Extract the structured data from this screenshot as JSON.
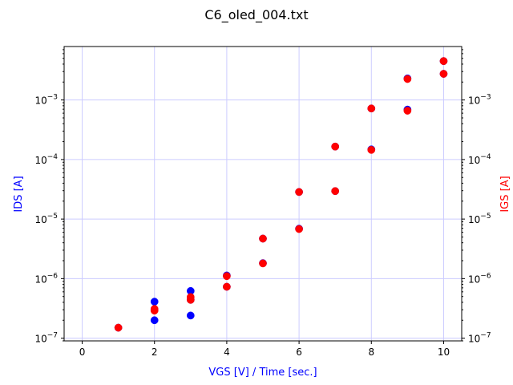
{
  "chart_data": {
    "type": "scatter",
    "title": "C6_oled_004.txt",
    "xlabel": "VGS [V] / Time [sec.]",
    "ylabel_left": "IDS [A]",
    "ylabel_right": "IGS [A]",
    "xlim": [
      -0.5,
      10.5
    ],
    "ylim": [
      9e-08,
      0.0079
    ],
    "yscale": "log",
    "x_ticks": [
      0,
      2,
      4,
      6,
      8,
      10
    ],
    "y_ticks": [
      {
        "value": 1e-07,
        "base": "10",
        "exp": "−7"
      },
      {
        "value": 1e-06,
        "base": "10",
        "exp": "−6"
      },
      {
        "value": 1e-05,
        "base": "10",
        "exp": "−5"
      },
      {
        "value": 0.0001,
        "base": "10",
        "exp": "−4"
      },
      {
        "value": 0.001,
        "base": "10",
        "exp": "−3"
      }
    ],
    "grid": true,
    "colors": {
      "ids": "#0000ff",
      "igs": "#ff0000",
      "grid": "#ccccff"
    },
    "series": [
      {
        "axis": "left",
        "color": "#0000ff",
        "points": [
          [
            1,
            1.5e-07
          ],
          [
            2,
            2e-07
          ],
          [
            2,
            3e-07
          ],
          [
            2,
            4.1e-07
          ],
          [
            3,
            2.4e-07
          ],
          [
            3,
            4.4e-07
          ],
          [
            3,
            6.2e-07
          ],
          [
            4,
            7.3e-07
          ],
          [
            4,
            1.13e-06
          ],
          [
            5,
            1.82e-06
          ],
          [
            5,
            4.7e-06
          ],
          [
            6,
            6.9e-06
          ],
          [
            6,
            2.85e-05
          ],
          [
            7,
            2.95e-05
          ],
          [
            7,
            0.000165
          ],
          [
            8,
            0.000148
          ],
          [
            8,
            0.00072
          ],
          [
            9,
            0.00069
          ],
          [
            9,
            0.0023
          ],
          [
            10,
            0.00275
          ],
          [
            10,
            0.0045
          ]
        ]
      },
      {
        "axis": "right",
        "color": "#ff0000",
        "points": [
          [
            1,
            1.5e-07
          ],
          [
            2,
            2.9e-07
          ],
          [
            2,
            3.1e-07
          ],
          [
            3,
            4.4e-07
          ],
          [
            3,
            4.9e-07
          ],
          [
            4,
            7.3e-07
          ],
          [
            4,
            1.1e-06
          ],
          [
            5,
            1.8e-06
          ],
          [
            5,
            4.7e-06
          ],
          [
            6,
            6.8e-06
          ],
          [
            6,
            2.85e-05
          ],
          [
            7,
            2.95e-05
          ],
          [
            7,
            0.000165
          ],
          [
            8,
            0.000145
          ],
          [
            8,
            0.00072
          ],
          [
            9,
            0.00066
          ],
          [
            9,
            0.00225
          ],
          [
            10,
            0.00275
          ],
          [
            10,
            0.0045
          ]
        ]
      }
    ]
  }
}
